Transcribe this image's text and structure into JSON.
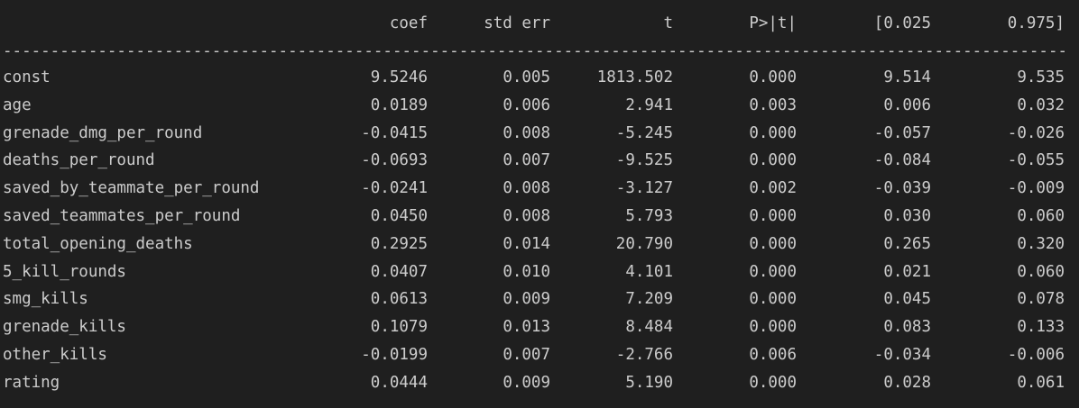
{
  "header": {
    "coef": "coef",
    "std_err": "std err",
    "t": "t",
    "p": "P>|t|",
    "ci_low": "[0.025",
    "ci_high": "0.975]"
  },
  "separator": "-----------------------------------------------------------------------------------------------------------------------------------------------------",
  "rows": [
    {
      "name": "const",
      "coef": "9.5246",
      "std_err": "0.005",
      "t": "1813.502",
      "p": "0.000",
      "ci_low": "9.514",
      "ci_high": "9.535"
    },
    {
      "name": "age",
      "coef": "0.0189",
      "std_err": "0.006",
      "t": "2.941",
      "p": "0.003",
      "ci_low": "0.006",
      "ci_high": "0.032"
    },
    {
      "name": "grenade_dmg_per_round",
      "coef": "-0.0415",
      "std_err": "0.008",
      "t": "-5.245",
      "p": "0.000",
      "ci_low": "-0.057",
      "ci_high": "-0.026"
    },
    {
      "name": "deaths_per_round",
      "coef": "-0.0693",
      "std_err": "0.007",
      "t": "-9.525",
      "p": "0.000",
      "ci_low": "-0.084",
      "ci_high": "-0.055"
    },
    {
      "name": "saved_by_teammate_per_round",
      "coef": "-0.0241",
      "std_err": "0.008",
      "t": "-3.127",
      "p": "0.002",
      "ci_low": "-0.039",
      "ci_high": "-0.009"
    },
    {
      "name": "saved_teammates_per_round",
      "coef": "0.0450",
      "std_err": "0.008",
      "t": "5.793",
      "p": "0.000",
      "ci_low": "0.030",
      "ci_high": "0.060"
    },
    {
      "name": "total_opening_deaths",
      "coef": "0.2925",
      "std_err": "0.014",
      "t": "20.790",
      "p": "0.000",
      "ci_low": "0.265",
      "ci_high": "0.320"
    },
    {
      "name": "5_kill_rounds",
      "coef": "0.0407",
      "std_err": "0.010",
      "t": "4.101",
      "p": "0.000",
      "ci_low": "0.021",
      "ci_high": "0.060"
    },
    {
      "name": "smg_kills",
      "coef": "0.0613",
      "std_err": "0.009",
      "t": "7.209",
      "p": "0.000",
      "ci_low": "0.045",
      "ci_high": "0.078"
    },
    {
      "name": "grenade_kills",
      "coef": "0.1079",
      "std_err": "0.013",
      "t": "8.484",
      "p": "0.000",
      "ci_low": "0.083",
      "ci_high": "0.133"
    },
    {
      "name": "other_kills",
      "coef": "-0.0199",
      "std_err": "0.007",
      "t": "-2.766",
      "p": "0.006",
      "ci_low": "-0.034",
      "ci_high": "-0.006"
    },
    {
      "name": "rating",
      "coef": "0.0444",
      "std_err": "0.009",
      "t": "5.190",
      "p": "0.000",
      "ci_low": "0.028",
      "ci_high": "0.061"
    }
  ]
}
